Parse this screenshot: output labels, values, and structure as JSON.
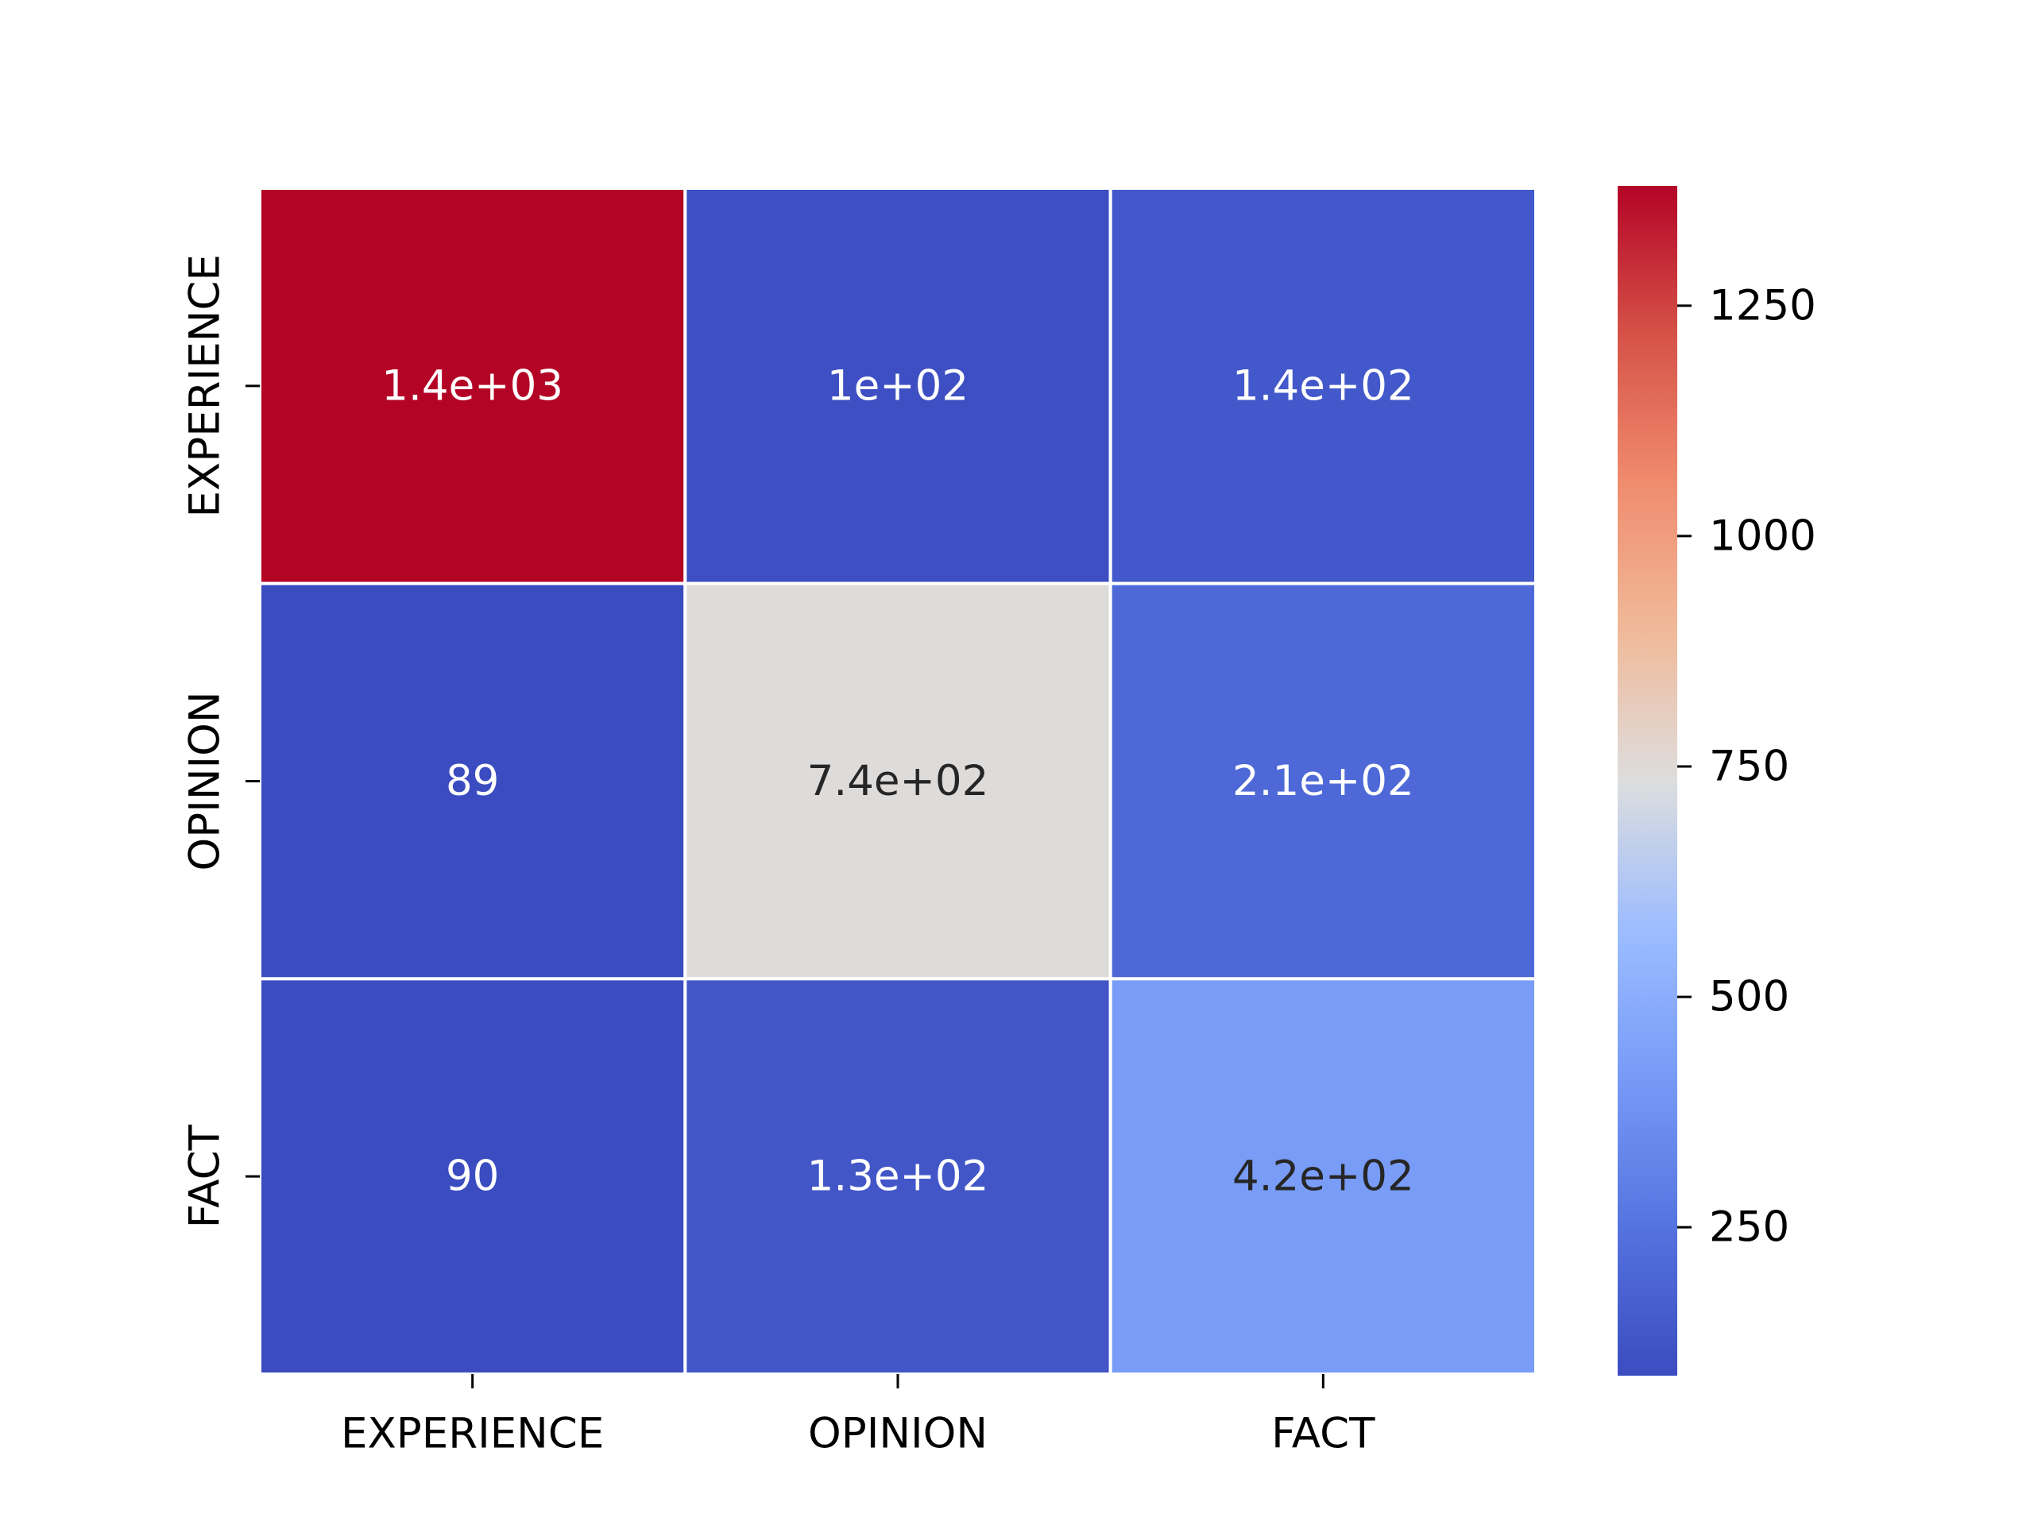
{
  "chart_data": {
    "type": "heatmap",
    "title": "",
    "xlabel": "",
    "ylabel": "",
    "x_categories": [
      "EXPERIENCE",
      "OPINION",
      "FACT"
    ],
    "y_categories": [
      "EXPERIENCE",
      "OPINION",
      "FACT"
    ],
    "values": [
      [
        1380,
        100,
        140
      ],
      [
        89,
        740,
        210
      ],
      [
        90,
        130,
        420
      ]
    ],
    "annotations": [
      [
        "1.4e+03",
        "1e+02",
        "1.4e+02"
      ],
      [
        "89",
        "7.4e+02",
        "2.1e+02"
      ],
      [
        "90",
        "1.3e+02",
        "4.2e+02"
      ]
    ],
    "colormap": "coolwarm",
    "colorbar": {
      "min": 89,
      "max": 1380,
      "ticks": [
        250,
        500,
        750,
        1000,
        1250
      ],
      "tick_labels": [
        "250",
        "500",
        "750",
        "1000",
        "1250"
      ]
    },
    "grid": false,
    "cell_border_color": "#ffffff",
    "light_text_color": "#ffffff",
    "dark_text_color": "#262626"
  }
}
